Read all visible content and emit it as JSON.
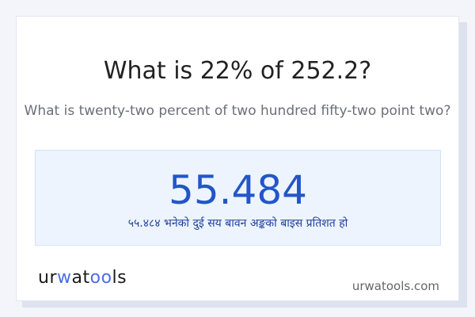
{
  "question": "What is 22% of 252.2?",
  "question_words": "What is twenty-two percent of two hundred fifty-two point two?",
  "result": {
    "value": "55.484",
    "nepali_text": "५५.४८४ भनेको दुई सय बावन अङ्कको बाइस प्रतिशत हो"
  },
  "brand": {
    "logo_text": "urwatools",
    "site": "urwatools.com",
    "accent": "#4c6ee0"
  }
}
